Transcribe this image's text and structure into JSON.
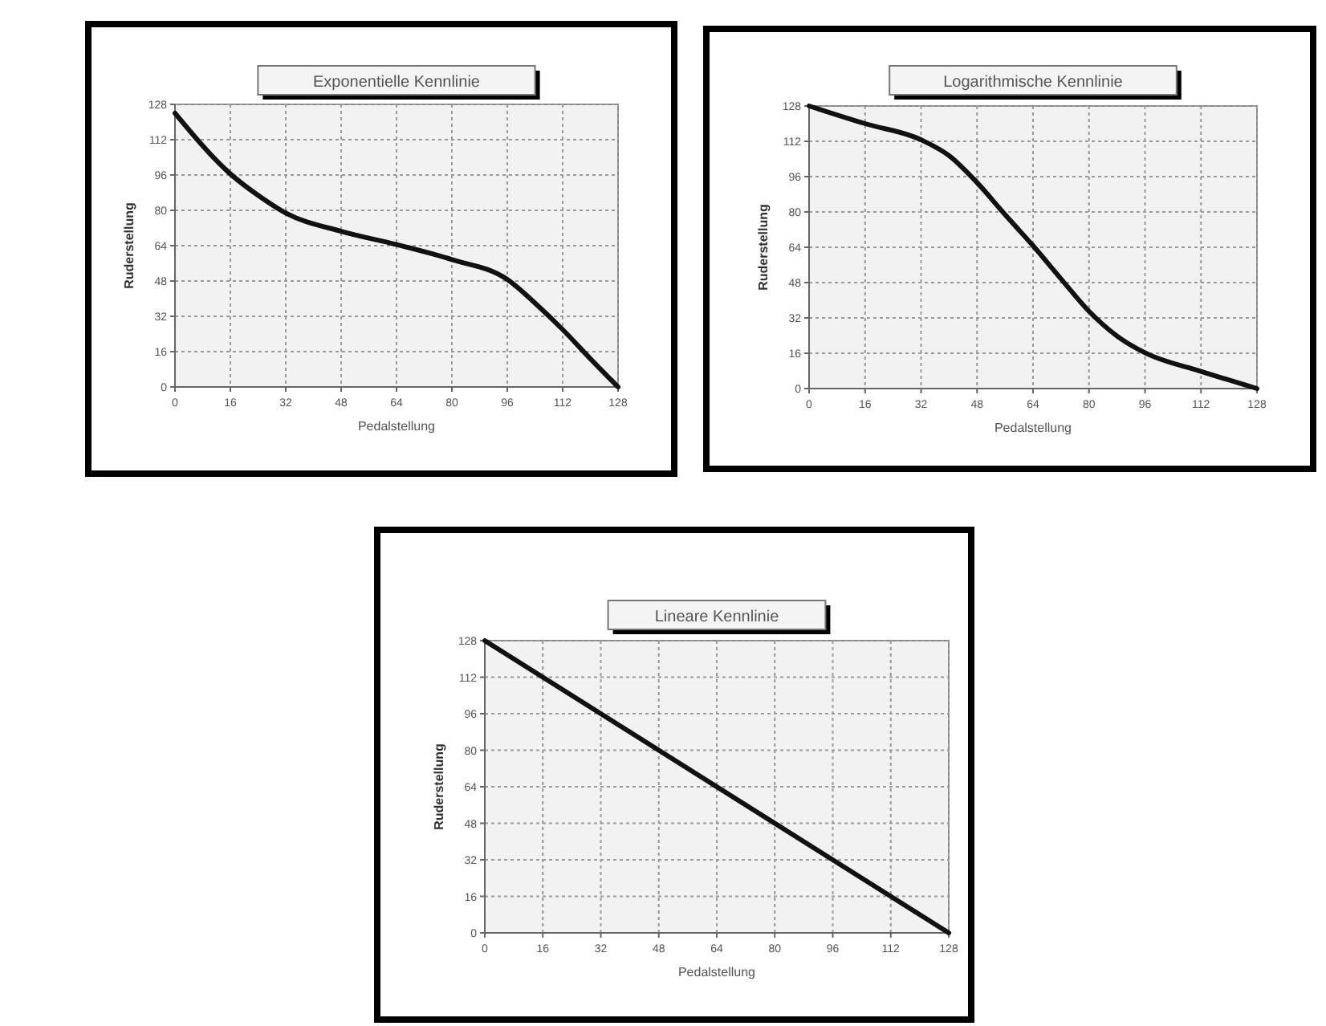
{
  "chart_data": [
    {
      "type": "line",
      "title": "Exponentielle Kennlinie",
      "xlabel": "Pedalstellung",
      "ylabel": "Ruderstellung",
      "color": "#111111",
      "grid": true,
      "xlim": [
        0,
        128
      ],
      "ylim": [
        0,
        128
      ],
      "xticks": [
        0,
        16,
        32,
        48,
        64,
        80,
        96,
        112,
        128
      ],
      "yticks": [
        0,
        16,
        32,
        48,
        64,
        80,
        96,
        112,
        128
      ],
      "x": [
        0,
        16,
        24,
        32,
        48,
        64,
        80,
        96,
        104,
        112,
        120,
        128
      ],
      "values": [
        124,
        96.5,
        86.8,
        78.8,
        70.5,
        64.5,
        57.7,
        48.7,
        38,
        26,
        12.8,
        0
      ]
    },
    {
      "type": "line",
      "title": "Logarithmische Kennlinie",
      "xlabel": "Pedalstellung",
      "ylabel": "Ruderstellung",
      "color": "#111111",
      "grid": true,
      "xlim": [
        0,
        128
      ],
      "ylim": [
        0,
        128
      ],
      "xticks": [
        0,
        16,
        32,
        48,
        64,
        80,
        96,
        112,
        128
      ],
      "yticks": [
        0,
        16,
        32,
        48,
        64,
        80,
        96,
        112,
        128
      ],
      "x": [
        0,
        16,
        32,
        40,
        48,
        56,
        64,
        72,
        80,
        88,
        96,
        112,
        128
      ],
      "values": [
        128,
        120,
        112.7,
        105.5,
        93.3,
        78.8,
        64.7,
        49.7,
        35,
        23.8,
        16.2,
        7.8,
        0
      ]
    },
    {
      "type": "line",
      "title": "Lineare Kennlinie",
      "xlabel": "Pedalstellung",
      "ylabel": "Ruderstellung",
      "color": "#111111",
      "grid": true,
      "xlim": [
        0,
        128
      ],
      "ylim": [
        0,
        128
      ],
      "xticks": [
        0,
        16,
        32,
        48,
        64,
        80,
        96,
        112,
        128
      ],
      "yticks": [
        0,
        16,
        32,
        48,
        64,
        80,
        96,
        112,
        128
      ],
      "x": [
        0,
        128
      ],
      "values": [
        128,
        0
      ]
    }
  ]
}
